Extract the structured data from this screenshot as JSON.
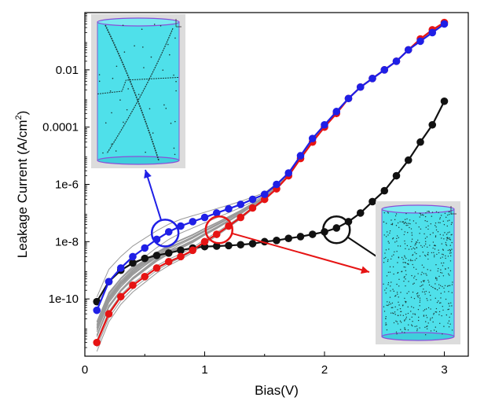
{
  "chart_data": {
    "type": "scatter",
    "xlabel": "Bias(V)",
    "ylabel_parts": {
      "main": "Leakage Current (A/cm",
      "sup": "2",
      "end": ")"
    },
    "x_ticks": [
      "0",
      "1",
      "2",
      "3"
    ],
    "y_ticks": [
      "1e-10",
      "1e-8",
      "1e-6",
      "0.0001",
      "0.01"
    ],
    "xlim": [
      0,
      3.2
    ],
    "ylim": [
      1e-12,
      1
    ],
    "y_scale": "log",
    "grid": false,
    "series": [
      {
        "color": "#1f1fe6",
        "x": [
          0.1,
          0.2,
          0.3,
          0.4,
          0.5,
          0.6,
          0.7,
          0.8,
          0.9,
          1.0,
          1.1,
          1.2,
          1.3,
          1.4,
          1.5,
          1.6,
          1.7,
          1.8,
          1.9,
          2.0,
          2.1,
          2.2,
          2.3,
          2.4,
          2.5,
          2.6,
          2.7,
          2.8,
          2.9,
          3.0
        ],
        "y": [
          4e-11,
          4e-10,
          1.2e-09,
          3e-09,
          6e-09,
          1.2e-08,
          2.2e-08,
          3.5e-08,
          5e-08,
          7e-08,
          1e-07,
          1.4e-07,
          2e-07,
          3e-07,
          4.5e-07,
          1e-06,
          2.5e-06,
          1e-05,
          4e-05,
          0.00012,
          0.00035,
          0.001,
          0.0025,
          0.005,
          0.01,
          0.02,
          0.05,
          0.1,
          0.2,
          0.4
        ]
      },
      {
        "color": "#e61414",
        "x": [
          0.1,
          0.2,
          0.3,
          0.4,
          0.5,
          0.6,
          0.7,
          0.8,
          0.9,
          1.0,
          1.1,
          1.2,
          1.3,
          1.4,
          1.5,
          1.6,
          1.7,
          1.8,
          1.9,
          2.0,
          2.1,
          2.2,
          2.3,
          2.4,
          2.5,
          2.6,
          2.7,
          2.8,
          2.9,
          3.0
        ],
        "y": [
          3e-12,
          3e-11,
          1.2e-10,
          3e-10,
          6e-10,
          1.2e-09,
          2e-09,
          3e-09,
          5e-09,
          1e-08,
          1.8e-08,
          3.5e-08,
          7e-08,
          1.5e-07,
          3e-07,
          7e-07,
          2e-06,
          8e-06,
          3e-05,
          0.0001,
          0.0003,
          0.001,
          0.0025,
          0.005,
          0.01,
          0.02,
          0.05,
          0.12,
          0.25,
          0.45
        ]
      },
      {
        "color": "#111111",
        "x": [
          0.1,
          0.2,
          0.3,
          0.4,
          0.5,
          0.6,
          0.7,
          0.8,
          0.9,
          1.0,
          1.1,
          1.2,
          1.3,
          1.4,
          1.5,
          1.6,
          1.7,
          1.8,
          1.9,
          2.0,
          2.1,
          2.2,
          2.3,
          2.4,
          2.5,
          2.6,
          2.7,
          2.8,
          2.9,
          3.0
        ],
        "y": [
          8e-11,
          4e-10,
          1e-09,
          1.8e-09,
          2.6e-09,
          3.3e-09,
          4e-09,
          5e-09,
          6e-09,
          6.7e-09,
          7e-09,
          7.3e-09,
          7.8e-09,
          8.5e-09,
          1e-08,
          1.1e-08,
          1.3e-08,
          1.5e-08,
          1.8e-08,
          2.2e-08,
          3e-08,
          5e-08,
          1e-07,
          2.5e-07,
          6e-07,
          2e-06,
          7e-06,
          3e-05,
          0.00012,
          0.0008
        ]
      }
    ],
    "gray_curves": {
      "color": "#999999",
      "count": 24
    },
    "annotation_circles": [
      {
        "target": "blue",
        "x": 0.67,
        "y": 2e-08,
        "color": "#1f1fe6"
      },
      {
        "target": "red",
        "x": 1.12,
        "y": 2.6e-08,
        "color": "#e61414"
      },
      {
        "target": "black",
        "x": 2.1,
        "y": 2.6e-08,
        "color": "#111111"
      }
    ],
    "insets": [
      {
        "name": "blue-inset",
        "glyph": "filament",
        "label_axis": "zx"
      },
      {
        "name": "black-inset",
        "glyph": "uniform",
        "label_axis": "zx"
      }
    ]
  }
}
